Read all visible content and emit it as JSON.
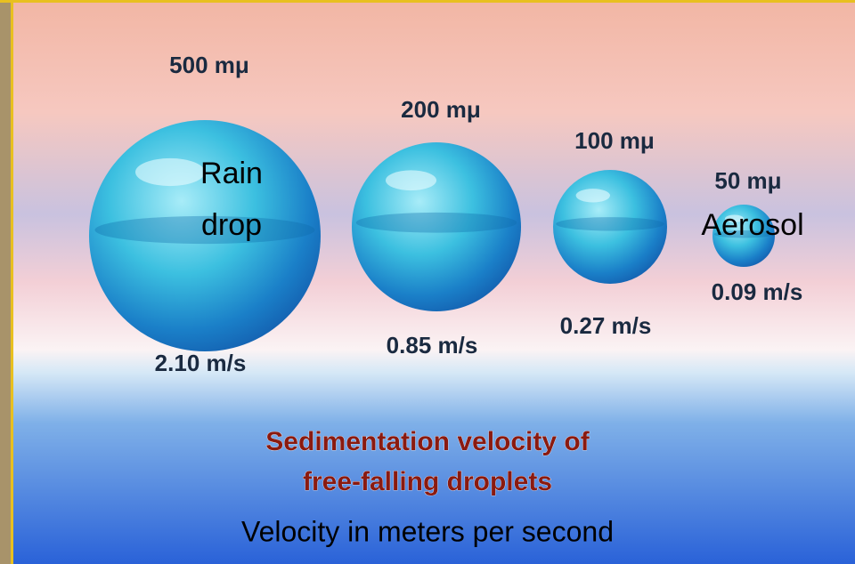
{
  "droplets": [
    {
      "size": "500 mμ",
      "velocity": "2.10 m/s",
      "label_lines": [
        "Rain",
        "drop"
      ]
    },
    {
      "size": "200 mμ",
      "velocity": "0.85 m/s"
    },
    {
      "size": "100 mμ",
      "velocity": "0.27 m/s"
    },
    {
      "size": "50 mμ",
      "velocity": "0.09 m/s",
      "label_lines": [
        "Aerosol"
      ]
    }
  ],
  "title_lines": [
    "Sedimentation velocity of",
    "free-falling droplets"
  ],
  "caption": "Velocity in meters per second"
}
